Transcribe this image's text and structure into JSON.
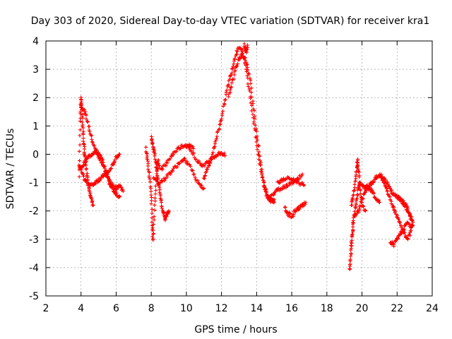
{
  "chart_data": {
    "type": "scatter",
    "title": "Day 303 of 2020, Sidereal Day-to-day VTEC variation (SDTVAR) for receiver kra1",
    "xlabel": "GPS time / hours",
    "ylabel": "SDTVAR / TECUs",
    "xlim": [
      2,
      24
    ],
    "ylim": [
      -5,
      4
    ],
    "xticks": [
      "2",
      "4",
      "6",
      "8",
      "10",
      "12",
      "14",
      "16",
      "18",
      "20",
      "22",
      "24"
    ],
    "yticks": [
      "4",
      "3",
      "2",
      "1",
      "0",
      "-1",
      "-2",
      "-3",
      "-4",
      "-5"
    ],
    "grid": true,
    "marker": "+",
    "color": "#ff0000",
    "series": [
      {
        "name": "SDTVAR",
        "segments": [
          [
            [
              3.9,
              -0.8
            ],
            [
              3.95,
              1.2
            ],
            [
              4.0,
              2.0
            ],
            [
              4.05,
              1.6
            ],
            [
              4.1,
              1.0
            ],
            [
              4.15,
              0.4
            ],
            [
              4.2,
              0.0
            ],
            [
              4.3,
              -0.5
            ],
            [
              4.4,
              -1.0
            ],
            [
              4.5,
              -1.3
            ],
            [
              4.6,
              -1.6
            ],
            [
              4.7,
              -1.8
            ]
          ],
          [
            [
              3.9,
              -0.4
            ],
            [
              4.0,
              -0.6
            ],
            [
              4.2,
              -0.9
            ],
            [
              4.4,
              -1.0
            ],
            [
              4.6,
              -1.1
            ],
            [
              4.8,
              -1.0
            ],
            [
              5.0,
              -0.9
            ],
            [
              5.2,
              -0.8
            ],
            [
              5.4,
              -0.7
            ],
            [
              5.6,
              -0.6
            ],
            [
              5.8,
              -0.4
            ],
            [
              6.0,
              -0.1
            ],
            [
              6.2,
              0.0
            ]
          ],
          [
            [
              4.0,
              1.7
            ],
            [
              4.2,
              1.5
            ],
            [
              4.4,
              1.1
            ],
            [
              4.6,
              0.6
            ],
            [
              4.8,
              0.2
            ],
            [
              5.0,
              -0.1
            ],
            [
              5.2,
              -0.3
            ],
            [
              5.4,
              -0.6
            ],
            [
              5.6,
              -0.9
            ],
            [
              5.8,
              -1.1
            ],
            [
              6.0,
              -1.2
            ],
            [
              6.2,
              -1.1
            ],
            [
              6.4,
              -1.3
            ]
          ],
          [
            [
              4.0,
              -0.5
            ],
            [
              4.2,
              -0.3
            ],
            [
              4.4,
              -0.1
            ],
            [
              4.6,
              0.0
            ],
            [
              4.8,
              0.1
            ],
            [
              5.0,
              0.05
            ],
            [
              5.2,
              -0.2
            ],
            [
              5.4,
              -0.6
            ],
            [
              5.6,
              -1.0
            ],
            [
              5.8,
              -1.2
            ],
            [
              6.0,
              -1.4
            ],
            [
              6.2,
              -1.5
            ]
          ],
          [
            [
              7.7,
              0.2
            ],
            [
              7.8,
              -0.3
            ],
            [
              7.9,
              -0.8
            ],
            [
              8.0,
              -1.5
            ],
            [
              8.05,
              -2.5
            ],
            [
              8.1,
              -3.0
            ],
            [
              8.2,
              -1.8
            ],
            [
              8.3,
              -0.8
            ],
            [
              8.4,
              -0.2
            ]
          ],
          [
            [
              8.0,
              0.6
            ],
            [
              8.1,
              0.3
            ],
            [
              8.2,
              0.0
            ],
            [
              8.3,
              -0.5
            ],
            [
              8.4,
              -1.0
            ],
            [
              8.5,
              -1.4
            ],
            [
              8.6,
              -1.8
            ],
            [
              8.7,
              -2.1
            ],
            [
              8.8,
              -2.3
            ],
            [
              8.9,
              -2.1
            ],
            [
              9.0,
              -2.0
            ]
          ],
          [
            [
              8.3,
              -0.3
            ],
            [
              8.6,
              -0.5
            ],
            [
              8.9,
              -0.3
            ],
            [
              9.2,
              0.0
            ],
            [
              9.5,
              0.2
            ],
            [
              9.8,
              0.3
            ],
            [
              10.1,
              0.35
            ],
            [
              10.4,
              0.2
            ]
          ],
          [
            [
              8.1,
              -0.8
            ],
            [
              8.4,
              -1.0
            ],
            [
              8.7,
              -0.9
            ],
            [
              9.0,
              -0.7
            ],
            [
              9.3,
              -0.5
            ],
            [
              9.6,
              -0.3
            ],
            [
              9.9,
              -0.2
            ],
            [
              10.2,
              -0.4
            ],
            [
              10.5,
              -0.8
            ],
            [
              10.8,
              -1.1
            ],
            [
              11.0,
              -1.2
            ]
          ],
          [
            [
              10.0,
              0.3
            ],
            [
              10.3,
              0.1
            ],
            [
              10.6,
              -0.2
            ],
            [
              10.9,
              -0.4
            ],
            [
              11.2,
              -0.3
            ],
            [
              11.5,
              -0.1
            ],
            [
              11.8,
              0.0
            ],
            [
              12.0,
              0.05
            ],
            [
              12.2,
              -0.05
            ]
          ],
          [
            [
              11.0,
              -0.9
            ],
            [
              11.2,
              -0.5
            ],
            [
              11.4,
              -0.2
            ],
            [
              11.6,
              0.3
            ],
            [
              11.8,
              0.8
            ],
            [
              12.0,
              1.3
            ],
            [
              12.2,
              1.9
            ],
            [
              12.4,
              2.5
            ],
            [
              12.6,
              3.0
            ],
            [
              12.8,
              3.5
            ],
            [
              13.0,
              3.8
            ],
            [
              13.2,
              3.6
            ],
            [
              13.4,
              3.0
            ],
            [
              13.6,
              2.2
            ],
            [
              13.8,
              1.3
            ],
            [
              14.0,
              0.4
            ],
            [
              14.2,
              -0.4
            ],
            [
              14.4,
              -1.0
            ],
            [
              14.6,
              -1.4
            ],
            [
              14.8,
              -1.6
            ],
            [
              15.0,
              -1.7
            ]
          ],
          [
            [
              12.4,
              2.0
            ],
            [
              12.6,
              2.5
            ],
            [
              12.8,
              3.0
            ],
            [
              13.0,
              3.4
            ],
            [
              13.2,
              3.5
            ],
            [
              13.4,
              3.3
            ],
            [
              13.6,
              2.7
            ],
            [
              13.8,
              1.8
            ],
            [
              14.0,
              0.8
            ],
            [
              14.2,
              -0.2
            ],
            [
              14.4,
              -1.0
            ],
            [
              14.6,
              -1.5
            ],
            [
              14.8,
              -1.7
            ],
            [
              15.0,
              -1.6
            ]
          ],
          [
            [
              13.5,
              3.8
            ],
            [
              13.4,
              3.6
            ],
            [
              13.3,
              3.9
            ]
          ],
          [
            [
              14.8,
              -1.5
            ],
            [
              15.1,
              -1.3
            ],
            [
              15.4,
              -1.2
            ],
            [
              15.7,
              -1.1
            ],
            [
              16.0,
              -1.0
            ],
            [
              16.3,
              -0.9
            ],
            [
              16.6,
              -0.7
            ]
          ],
          [
            [
              15.2,
              -1.0
            ],
            [
              15.5,
              -0.9
            ],
            [
              15.8,
              -0.85
            ],
            [
              16.1,
              -0.9
            ],
            [
              16.4,
              -1.0
            ],
            [
              16.7,
              -1.1
            ]
          ],
          [
            [
              15.6,
              -1.9
            ],
            [
              15.8,
              -2.1
            ],
            [
              16.0,
              -2.2
            ],
            [
              16.2,
              -2.0
            ],
            [
              16.4,
              -1.9
            ],
            [
              16.6,
              -1.8
            ],
            [
              16.8,
              -1.7
            ]
          ],
          [
            [
              19.3,
              -4.1
            ],
            [
              19.35,
              -3.7
            ],
            [
              19.4,
              -3.2
            ],
            [
              19.45,
              -2.8
            ],
            [
              19.5,
              -2.4
            ],
            [
              19.6,
              -2.0
            ],
            [
              19.7,
              -1.6
            ],
            [
              19.8,
              -1.2
            ],
            [
              19.9,
              -1.0
            ]
          ],
          [
            [
              19.4,
              -1.8
            ],
            [
              19.5,
              -1.5
            ],
            [
              19.6,
              -1.0
            ],
            [
              19.7,
              -0.5
            ],
            [
              19.75,
              -0.2
            ],
            [
              19.8,
              -0.6
            ],
            [
              19.9,
              -1.2
            ],
            [
              20.0,
              -1.8
            ],
            [
              20.2,
              -2.0
            ]
          ],
          [
            [
              19.6,
              -2.2
            ],
            [
              19.8,
              -2.0
            ],
            [
              20.0,
              -1.6
            ],
            [
              20.2,
              -1.3
            ],
            [
              20.4,
              -1.2
            ],
            [
              20.6,
              -1.3
            ],
            [
              20.8,
              -1.6
            ],
            [
              21.0,
              -1.7
            ]
          ],
          [
            [
              20.0,
              -1.1
            ],
            [
              20.2,
              -1.2
            ],
            [
              20.4,
              -1.1
            ],
            [
              20.6,
              -1.0
            ],
            [
              20.8,
              -0.8
            ],
            [
              21.0,
              -0.75
            ],
            [
              21.2,
              -0.8
            ],
            [
              21.4,
              -1.0
            ],
            [
              21.6,
              -1.2
            ],
            [
              21.8,
              -1.4
            ],
            [
              22.0,
              -1.5
            ],
            [
              22.2,
              -1.6
            ],
            [
              22.4,
              -1.7
            ],
            [
              22.6,
              -1.9
            ],
            [
              22.8,
              -2.3
            ]
          ],
          [
            [
              21.0,
              -0.7
            ],
            [
              21.2,
              -0.9
            ],
            [
              21.4,
              -1.2
            ],
            [
              21.6,
              -1.6
            ],
            [
              21.8,
              -1.9
            ],
            [
              22.0,
              -2.2
            ],
            [
              22.2,
              -2.5
            ],
            [
              22.4,
              -2.8
            ],
            [
              22.6,
              -3.0
            ],
            [
              22.8,
              -2.7
            ]
          ],
          [
            [
              21.6,
              -3.1
            ],
            [
              21.8,
              -3.2
            ],
            [
              22.0,
              -3.0
            ],
            [
              22.2,
              -2.8
            ],
            [
              22.4,
              -2.6
            ],
            [
              22.6,
              -2.4
            ],
            [
              22.8,
              -2.6
            ],
            [
              22.9,
              -2.5
            ]
          ],
          [
            [
              22.0,
              -1.5
            ],
            [
              22.2,
              -1.6
            ],
            [
              22.4,
              -1.8
            ],
            [
              22.6,
              -2.0
            ],
            [
              22.8,
              -2.2
            ],
            [
              22.9,
              -2.4
            ]
          ]
        ]
      }
    ]
  }
}
